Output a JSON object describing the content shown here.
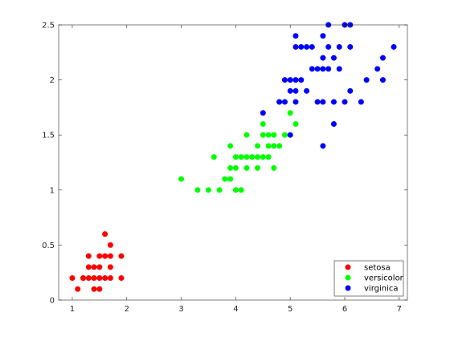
{
  "chart_data": {
    "type": "scatter",
    "title": "",
    "xlabel": "",
    "ylabel": "",
    "xlim": [
      0.75,
      7.15
    ],
    "ylim": [
      0,
      2.5
    ],
    "x_ticks": [
      1,
      2,
      3,
      4,
      5,
      6,
      7
    ],
    "y_ticks": [
      0,
      0.5,
      1,
      1.5,
      2,
      2.5
    ],
    "x_tick_labels": [
      "1",
      "2",
      "3",
      "4",
      "5",
      "6",
      "7"
    ],
    "y_tick_labels": [
      "0",
      "0.5",
      "1",
      "1.5",
      "2",
      "2.5"
    ],
    "grid": false,
    "legend_position": "bottom-right",
    "series": [
      {
        "name": "setosa",
        "color": "#ff0000",
        "points": [
          [
            1.0,
            0.2
          ],
          [
            1.1,
            0.1
          ],
          [
            1.2,
            0.2
          ],
          [
            1.2,
            0.2
          ],
          [
            1.3,
            0.2
          ],
          [
            1.3,
            0.3
          ],
          [
            1.3,
            0.4
          ],
          [
            1.4,
            0.1
          ],
          [
            1.4,
            0.2
          ],
          [
            1.4,
            0.3
          ],
          [
            1.5,
            0.1
          ],
          [
            1.5,
            0.2
          ],
          [
            1.5,
            0.3
          ],
          [
            1.5,
            0.4
          ],
          [
            1.6,
            0.2
          ],
          [
            1.6,
            0.4
          ],
          [
            1.6,
            0.6
          ],
          [
            1.7,
            0.2
          ],
          [
            1.7,
            0.3
          ],
          [
            1.7,
            0.4
          ],
          [
            1.7,
            0.5
          ],
          [
            1.9,
            0.2
          ],
          [
            1.9,
            0.4
          ]
        ]
      },
      {
        "name": "versicolor",
        "color": "#00ff00",
        "points": [
          [
            3.0,
            1.1
          ],
          [
            3.3,
            1.0
          ],
          [
            3.5,
            1.0
          ],
          [
            3.6,
            1.3
          ],
          [
            3.7,
            1.0
          ],
          [
            3.8,
            1.1
          ],
          [
            3.9,
            1.1
          ],
          [
            3.9,
            1.2
          ],
          [
            3.9,
            1.4
          ],
          [
            4.0,
            1.0
          ],
          [
            4.0,
            1.2
          ],
          [
            4.0,
            1.3
          ],
          [
            4.1,
            1.0
          ],
          [
            4.1,
            1.3
          ],
          [
            4.2,
            1.2
          ],
          [
            4.2,
            1.3
          ],
          [
            4.2,
            1.5
          ],
          [
            4.3,
            1.3
          ],
          [
            4.4,
            1.2
          ],
          [
            4.4,
            1.3
          ],
          [
            4.4,
            1.4
          ],
          [
            4.5,
            1.3
          ],
          [
            4.5,
            1.5
          ],
          [
            4.5,
            1.6
          ],
          [
            4.6,
            1.3
          ],
          [
            4.6,
            1.4
          ],
          [
            4.6,
            1.5
          ],
          [
            4.7,
            1.2
          ],
          [
            4.7,
            1.4
          ],
          [
            4.7,
            1.5
          ],
          [
            4.8,
            1.4
          ],
          [
            4.8,
            1.8
          ],
          [
            4.9,
            1.5
          ],
          [
            5.0,
            1.7
          ],
          [
            5.1,
            1.6
          ]
        ]
      },
      {
        "name": "virginica",
        "color": "#0000ff",
        "points": [
          [
            4.5,
            1.7
          ],
          [
            4.8,
            1.8
          ],
          [
            4.9,
            1.8
          ],
          [
            4.9,
            2.0
          ],
          [
            5.0,
            1.5
          ],
          [
            5.0,
            1.9
          ],
          [
            5.0,
            2.0
          ],
          [
            5.1,
            1.8
          ],
          [
            5.1,
            1.9
          ],
          [
            5.1,
            2.0
          ],
          [
            5.1,
            2.3
          ],
          [
            5.1,
            2.4
          ],
          [
            5.2,
            2.0
          ],
          [
            5.2,
            2.3
          ],
          [
            5.3,
            1.9
          ],
          [
            5.3,
            2.3
          ],
          [
            5.4,
            2.1
          ],
          [
            5.4,
            2.3
          ],
          [
            5.5,
            1.8
          ],
          [
            5.5,
            2.1
          ],
          [
            5.6,
            1.4
          ],
          [
            5.6,
            1.8
          ],
          [
            5.6,
            2.1
          ],
          [
            5.6,
            2.2
          ],
          [
            5.6,
            2.4
          ],
          [
            5.7,
            2.1
          ],
          [
            5.7,
            2.3
          ],
          [
            5.7,
            2.5
          ],
          [
            5.8,
            1.6
          ],
          [
            5.8,
            1.8
          ],
          [
            5.8,
            2.2
          ],
          [
            5.9,
            2.1
          ],
          [
            5.9,
            2.3
          ],
          [
            6.0,
            1.8
          ],
          [
            6.0,
            2.5
          ],
          [
            6.1,
            1.9
          ],
          [
            6.1,
            2.3
          ],
          [
            6.1,
            2.5
          ],
          [
            6.3,
            1.8
          ],
          [
            6.4,
            2.0
          ],
          [
            6.6,
            2.1
          ],
          [
            6.7,
            2.0
          ],
          [
            6.7,
            2.2
          ],
          [
            6.9,
            2.3
          ]
        ]
      }
    ]
  }
}
